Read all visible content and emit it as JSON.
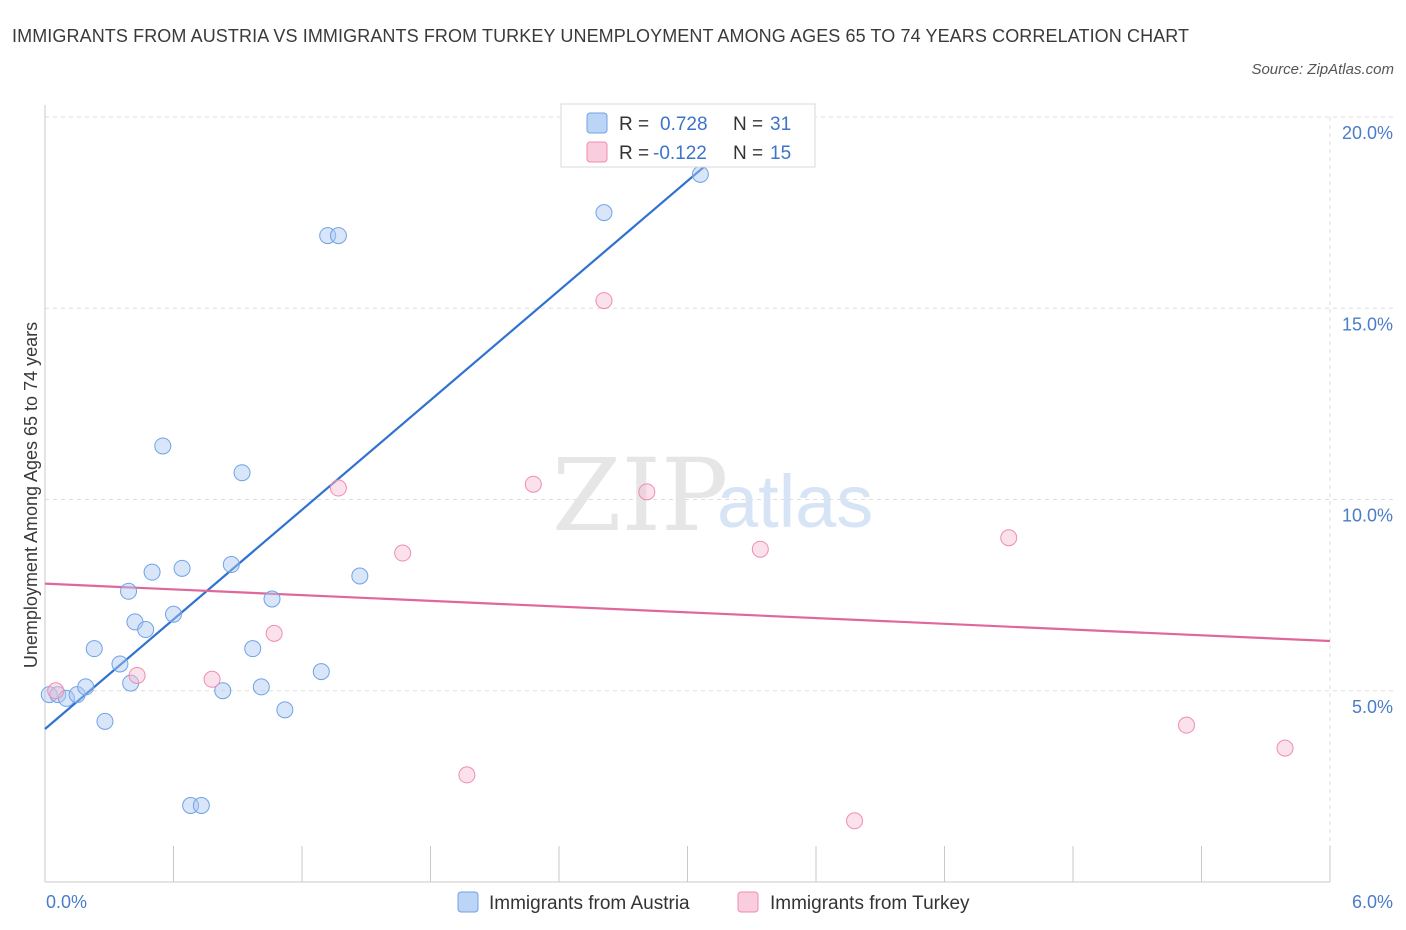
{
  "header": {
    "title": "IMMIGRANTS FROM AUSTRIA VS IMMIGRANTS FROM TURKEY UNEMPLOYMENT AMONG AGES 65 TO 74 YEARS CORRELATION CHART",
    "source": "Source: ZipAtlas.com"
  },
  "watermark": {
    "zip": "ZIP",
    "atlas": "atlas"
  },
  "legend": {
    "austria": {
      "r_label": "R =",
      "r_value": "0.728",
      "n_label": "N =",
      "n_value": "31"
    },
    "turkey": {
      "r_label": "R =",
      "r_value": "-0.122",
      "n_label": "N =",
      "n_value": "15"
    }
  },
  "chart_data": {
    "type": "scatter",
    "title": "IMMIGRANTS FROM AUSTRIA VS IMMIGRANTS FROM TURKEY UNEMPLOYMENT AMONG AGES 65 TO 74 YEARS CORRELATION CHART",
    "xlabel": "",
    "ylabel": "Unemployment Among Ages 65 to 74 years",
    "xlim": [
      0,
      6
    ],
    "ylim": [
      0,
      20
    ],
    "x_tick_labels": [
      "0.0%",
      "6.0%"
    ],
    "y_ticks": [
      5,
      10,
      15,
      20
    ],
    "y_tick_labels": [
      "5.0%",
      "10.0%",
      "15.0%",
      "20.0%"
    ],
    "grid": true,
    "colors": {
      "austria": "#6fa3e6",
      "turkey": "#f08cb0",
      "austria_line": "#2f72d0",
      "turkey_line": "#e0679a"
    },
    "series": [
      {
        "name": "Immigrants from Austria",
        "points": [
          [
            0.02,
            4.9
          ],
          [
            0.06,
            4.9
          ],
          [
            0.1,
            4.8
          ],
          [
            0.15,
            4.9
          ],
          [
            0.19,
            5.1
          ],
          [
            0.23,
            6.1
          ],
          [
            0.28,
            4.2
          ],
          [
            0.35,
            5.7
          ],
          [
            0.4,
            5.2
          ],
          [
            0.39,
            7.6
          ],
          [
            0.42,
            6.8
          ],
          [
            0.47,
            6.6
          ],
          [
            0.5,
            8.1
          ],
          [
            0.55,
            11.4
          ],
          [
            0.6,
            7.0
          ],
          [
            0.64,
            8.2
          ],
          [
            0.68,
            2.0
          ],
          [
            0.73,
            2.0
          ],
          [
            0.83,
            5.0
          ],
          [
            0.87,
            8.3
          ],
          [
            0.92,
            10.7
          ],
          [
            0.97,
            6.1
          ],
          [
            1.01,
            5.1
          ],
          [
            1.06,
            7.4
          ],
          [
            1.12,
            4.5
          ],
          [
            1.29,
            5.5
          ],
          [
            1.32,
            16.9
          ],
          [
            1.37,
            16.9
          ],
          [
            1.47,
            8.0
          ],
          [
            2.61,
            17.5
          ],
          [
            3.06,
            18.5
          ]
        ],
        "trend": [
          [
            0.0,
            4.0
          ],
          [
            3.35,
            20.0
          ]
        ]
      },
      {
        "name": "Immigrants from Turkey",
        "points": [
          [
            0.05,
            5.0
          ],
          [
            0.43,
            5.4
          ],
          [
            0.78,
            5.3
          ],
          [
            1.07,
            6.5
          ],
          [
            1.37,
            10.3
          ],
          [
            1.67,
            8.6
          ],
          [
            1.97,
            2.8
          ],
          [
            2.28,
            10.4
          ],
          [
            2.61,
            15.2
          ],
          [
            2.81,
            10.2
          ],
          [
            3.34,
            8.7
          ],
          [
            3.78,
            1.6
          ],
          [
            4.5,
            9.0
          ],
          [
            5.33,
            4.1
          ],
          [
            5.79,
            3.5
          ]
        ],
        "trend": [
          [
            0.0,
            7.8
          ],
          [
            6.0,
            6.3
          ]
        ]
      }
    ]
  },
  "bottom_legend": {
    "austria": "Immigrants from Austria",
    "turkey": "Immigrants from Turkey"
  }
}
